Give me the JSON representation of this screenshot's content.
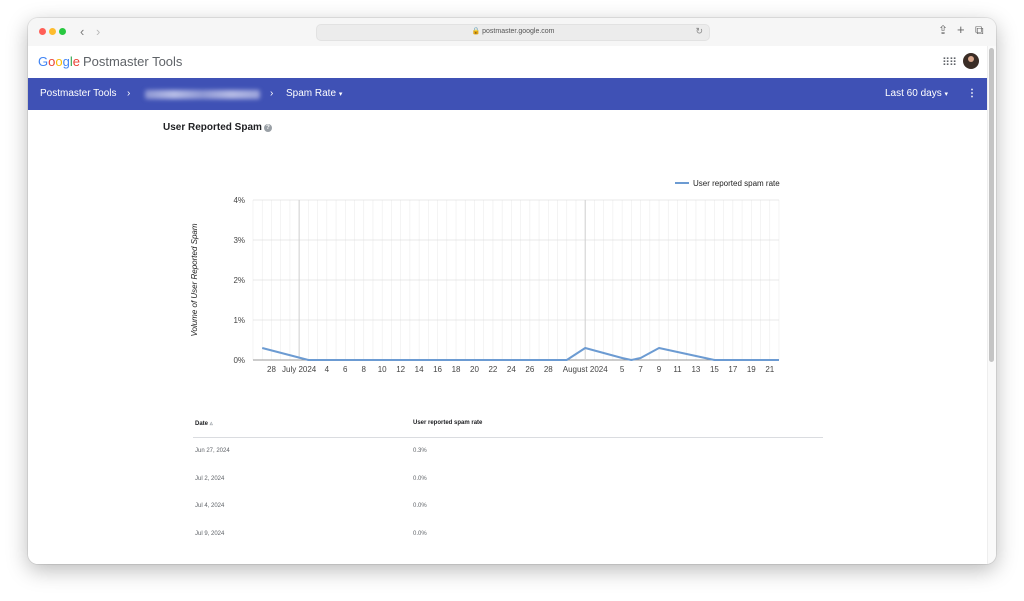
{
  "browser": {
    "url": "postmaster.google.com",
    "lock_icon": "lock-icon",
    "reload_icon": "reload-icon"
  },
  "app": {
    "logo": {
      "G": "G",
      "o1": "o",
      "o2": "o",
      "g": "g",
      "l": "l",
      "e": "e"
    },
    "product_name": "Postmaster Tools"
  },
  "navbar": {
    "home": "Postmaster Tools",
    "separator": "›",
    "page": "Spam Rate",
    "date_range": "Last 60 days",
    "dropdown_icon": "▾",
    "more_icon": "⋮"
  },
  "colors": {
    "navbar": "#3f51b5",
    "series": "#6c9bd2"
  },
  "section": {
    "title": "User Reported Spam",
    "help_icon": "?"
  },
  "chart_data": {
    "type": "line",
    "title": "User Reported Spam",
    "ylabel": "Volume of User Reported Spam",
    "xlabel": "",
    "legend_position": "top-right",
    "ylim": [
      0,
      4
    ],
    "y_ticks": [
      "0%",
      "1%",
      "2%",
      "3%",
      "4%"
    ],
    "x_tick_labels": [
      "28",
      "July 2024",
      "4",
      "6",
      "8",
      "10",
      "12",
      "14",
      "16",
      "18",
      "20",
      "22",
      "24",
      "26",
      "28",
      "August 2024",
      "5",
      "7",
      "9",
      "11",
      "13",
      "15",
      "17",
      "19",
      "21"
    ],
    "grid": true,
    "series": [
      {
        "name": "User reported spam rate",
        "color": "#6c9bd2",
        "x": [
          "2024-06-27",
          "2024-07-02",
          "2024-07-04",
          "2024-07-09",
          "2024-07-30",
          "2024-08-01",
          "2024-08-05",
          "2024-08-06",
          "2024-08-07",
          "2024-08-09",
          "2024-08-15",
          "2024-08-22"
        ],
        "values": [
          0.3,
          0.0,
          0.0,
          0.0,
          0.0,
          0.3,
          0.05,
          0.0,
          0.05,
          0.3,
          0.0,
          0.0
        ]
      }
    ]
  },
  "table": {
    "columns": [
      "Date",
      "User reported spam rate"
    ],
    "sort_icon": "▵",
    "rows": [
      {
        "date": "Jun 27, 2024",
        "rate": "0.3%"
      },
      {
        "date": "Jul 2, 2024",
        "rate": "0.0%"
      },
      {
        "date": "Jul 4, 2024",
        "rate": "0.0%"
      },
      {
        "date": "Jul 9, 2024",
        "rate": "0.0%"
      }
    ]
  }
}
